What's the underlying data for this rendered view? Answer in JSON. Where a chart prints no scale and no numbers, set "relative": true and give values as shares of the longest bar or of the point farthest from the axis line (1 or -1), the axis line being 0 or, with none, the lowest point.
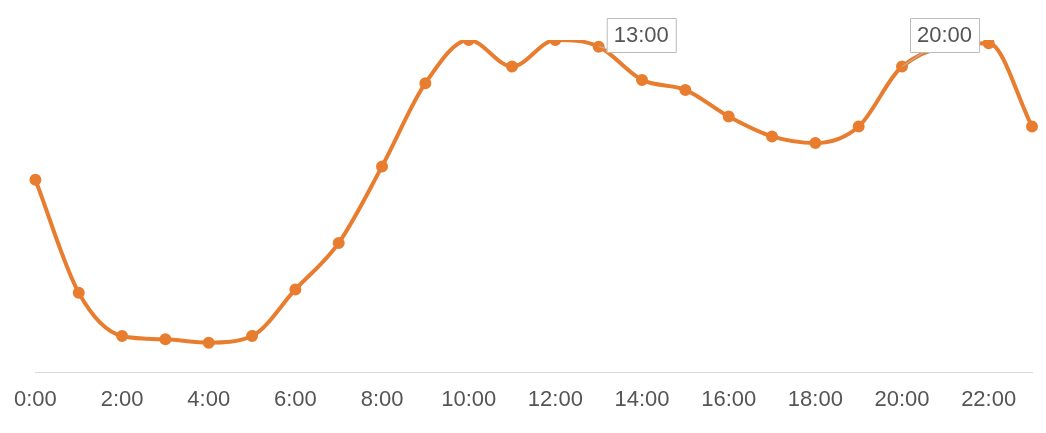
{
  "chart_data": {
    "type": "line",
    "relative": true,
    "categories": [
      "0:00",
      null,
      "2:00",
      null,
      "4:00",
      null,
      "6:00",
      null,
      "8:00",
      null,
      "10:00",
      null,
      "12:00",
      null,
      "14:00",
      null,
      "16:00",
      null,
      "18:00",
      null,
      "20:00",
      null,
      "22:00",
      null
    ],
    "series": [
      {
        "color": "#e87d2f",
        "values": [
          0.58,
          0.24,
          0.11,
          0.1,
          0.09,
          0.11,
          0.25,
          0.39,
          0.62,
          0.87,
          1,
          0.92,
          1,
          0.98,
          0.88,
          0.85,
          0.77,
          0.71,
          0.69,
          0.74,
          0.92,
          null,
          0.99,
          0.74
        ]
      }
    ],
    "annotations": [
      "13:00",
      "20:00"
    ],
    "marker": "circle",
    "grid": false,
    "legend": false
  }
}
